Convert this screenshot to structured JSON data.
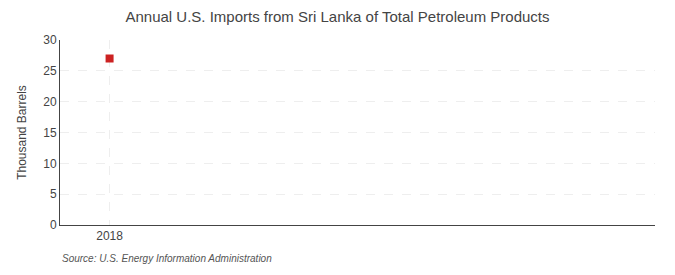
{
  "chart_data": {
    "type": "scatter",
    "title": "Annual U.S. Imports from Sri Lanka of Total Petroleum Products",
    "ylabel": "Thousand Barrels",
    "annotations": [
      "Source: U.S. Energy Information Administration"
    ],
    "x": [
      2018
    ],
    "values": [
      27
    ],
    "color": "#cc2222",
    "marker": "square",
    "xlim": [
      2017.5,
      2023.5
    ],
    "xticks": [
      2018
    ],
    "ylim": [
      0,
      30
    ],
    "yticks": [
      0,
      5,
      10,
      15,
      20,
      25,
      30
    ],
    "grid": true
  }
}
